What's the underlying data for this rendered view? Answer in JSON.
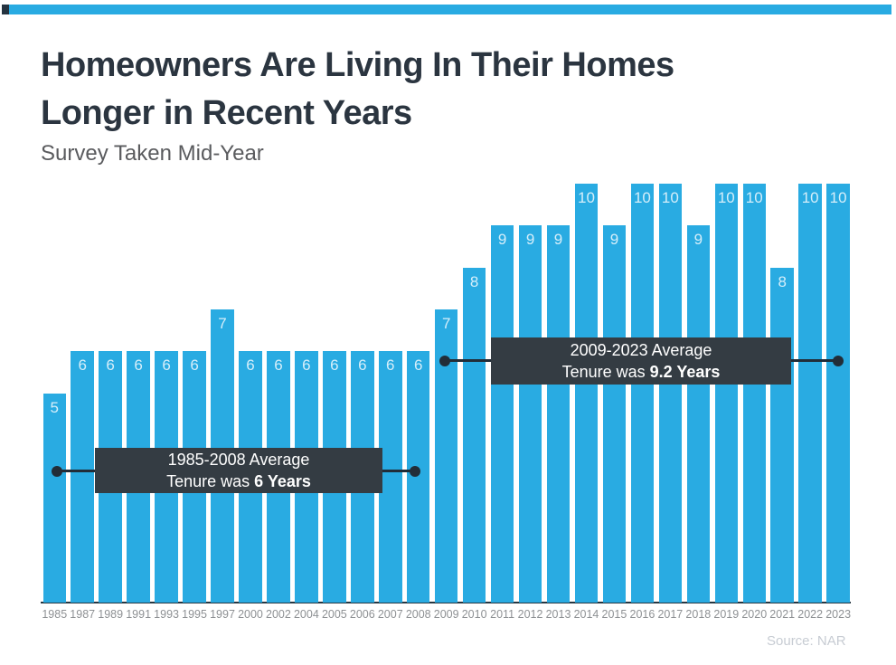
{
  "header": {
    "title_line1": "Homeowners Are Living In Their Homes",
    "title_line2": "Longer in Recent Years",
    "subtitle": "Survey Taken Mid-Year"
  },
  "chart_data": {
    "type": "bar",
    "title": "Homeowners Are Living In Their Homes Longer in Recent Years",
    "subtitle": "Survey Taken Mid-Year",
    "categories": [
      "1985",
      "1987",
      "1989",
      "1991",
      "1993",
      "1995",
      "1997",
      "2000",
      "2002",
      "2004",
      "2005",
      "2006",
      "2007",
      "2008",
      "2009",
      "2010",
      "2011",
      "2012",
      "2013",
      "2014",
      "2015",
      "2016",
      "2017",
      "2018",
      "2019",
      "2020",
      "2021",
      "2022",
      "2023"
    ],
    "values": [
      5,
      6,
      6,
      6,
      6,
      6,
      7,
      6,
      6,
      6,
      6,
      6,
      6,
      6,
      7,
      8,
      9,
      9,
      9,
      10,
      9,
      10,
      10,
      9,
      10,
      10,
      8,
      10,
      10
    ],
    "xlabel": "",
    "ylabel": "",
    "ylim": [
      0,
      10.5
    ],
    "grid": false,
    "legend": "none",
    "value_labels": "inside-top",
    "bar_color": "#29abe2",
    "value_label_color": "#d5eefa",
    "annotations": [
      {
        "line1": "1985-2008 Average",
        "line2_prefix": "Tenure was ",
        "line2_bold": "6 Years"
      },
      {
        "line1": "2009-2023 Average",
        "line2_prefix": "Tenure was ",
        "line2_bold": "9.2 Years"
      }
    ]
  },
  "footer": {
    "source": "Source: NAR"
  },
  "colors": {
    "accent_blue": "#29abe2",
    "accent_dark": "#253340",
    "title_text": "#2b3540",
    "subtitle_text": "#5a5b5e",
    "annotation_bg": "#343c43",
    "annotation_text": "#ffffff",
    "connector": "#222d38",
    "axis_line": "#263642",
    "tick_label": "#8e9194",
    "source_text": "#c7ccd3"
  }
}
